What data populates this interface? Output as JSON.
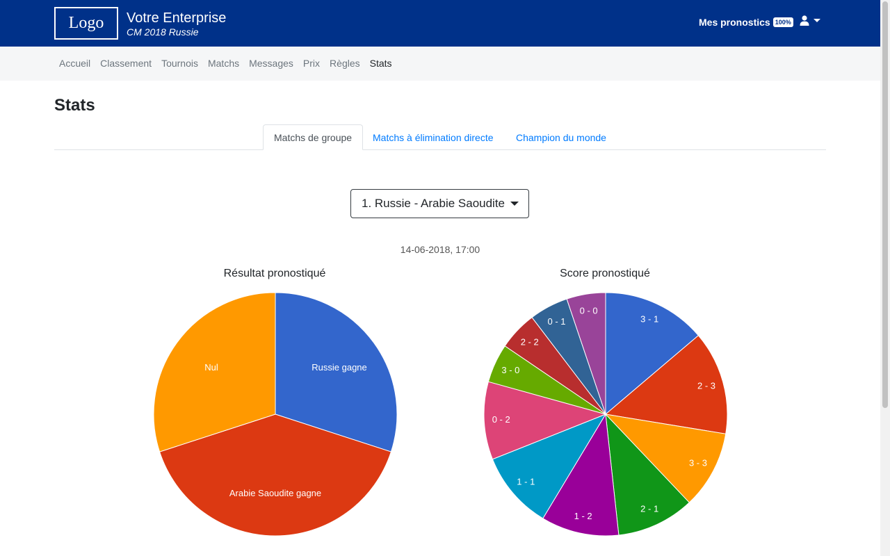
{
  "header": {
    "logo": "Logo",
    "company": "Votre Enterprise",
    "tournament": "CM 2018 Russie",
    "pronostics_label": "Mes pronostics",
    "pronostics_badge": "100%"
  },
  "nav": {
    "items": [
      {
        "label": "Accueil"
      },
      {
        "label": "Classement"
      },
      {
        "label": "Tournois"
      },
      {
        "label": "Matchs"
      },
      {
        "label": "Messages"
      },
      {
        "label": "Prix"
      },
      {
        "label": "Règles"
      },
      {
        "label": "Stats"
      }
    ],
    "active": "Stats"
  },
  "page": {
    "title": "Stats",
    "tabs": [
      {
        "label": "Matchs de groupe",
        "active": true
      },
      {
        "label": "Matchs à élimination directe",
        "active": false
      },
      {
        "label": "Champion du monde",
        "active": false
      }
    ],
    "match_select": "1. Russie - Arabie Saoudite",
    "match_datetime": "14-06-2018, 17:00"
  },
  "chart_data": [
    {
      "type": "pie",
      "title": "Résultat pronostiqué",
      "categories": [
        "Russie gagne",
        "Arabie Saoudite gagne",
        "Nul"
      ],
      "values": [
        3,
        4,
        3
      ],
      "colors": [
        "#3366cc",
        "#dc3912",
        "#ff9900"
      ]
    },
    {
      "type": "pie",
      "title": "Score pronostiqué",
      "categories": [
        "3 - 1",
        "2 - 3",
        "3 - 3",
        "2 - 1",
        "1 - 2",
        "1 - 1",
        "0 - 2",
        "3 - 0",
        "2 - 2",
        "0 - 1",
        "0 - 0"
      ],
      "values": [
        2,
        2,
        1.5,
        1.5,
        1.5,
        1.5,
        1.5,
        0.75,
        0.75,
        0.75,
        0.75
      ],
      "colors": [
        "#3366cc",
        "#dc3912",
        "#ff9900",
        "#109618",
        "#990099",
        "#0099c6",
        "#dd4477",
        "#66aa00",
        "#b82e2e",
        "#316395",
        "#994499"
      ]
    }
  ]
}
